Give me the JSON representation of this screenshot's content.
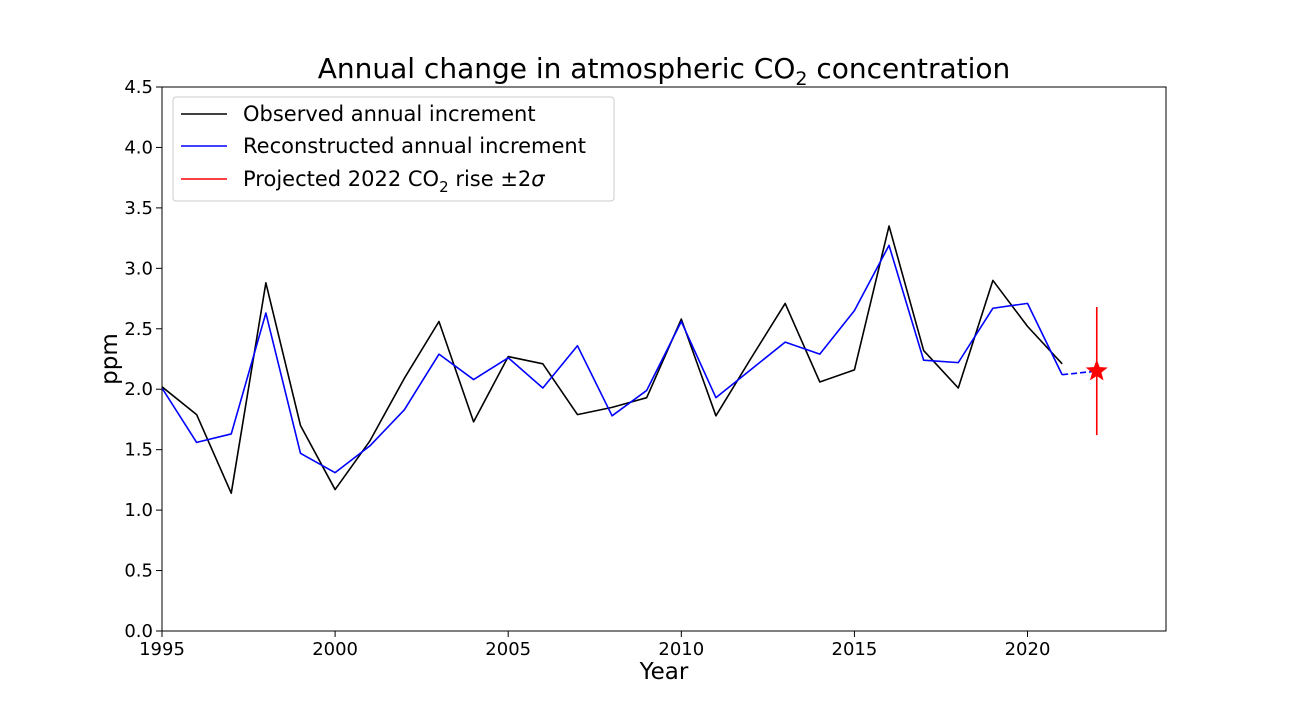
{
  "chart_data": {
    "type": "line",
    "title": {
      "prefix": "Annual change in atmospheric CO",
      "subscript": "2",
      "suffix": " concentration"
    },
    "xlabel": "Year",
    "ylabel": "ppm",
    "xlim": [
      1995,
      2024
    ],
    "ylim": [
      0.0,
      4.5
    ],
    "x_ticks": [
      1995,
      2000,
      2005,
      2010,
      2015,
      2020
    ],
    "x_tick_labels": [
      "1995",
      "2000",
      "2005",
      "2010",
      "2015",
      "2020"
    ],
    "y_ticks": [
      0.0,
      0.5,
      1.0,
      1.5,
      2.0,
      2.5,
      3.0,
      3.5,
      4.0,
      4.5
    ],
    "y_tick_labels": [
      "0.0",
      "0.5",
      "1.0",
      "1.5",
      "2.0",
      "2.5",
      "3.0",
      "3.5",
      "4.0",
      "4.5"
    ],
    "grid": false,
    "legend_position": "top-left",
    "series": [
      {
        "name": "Observed annual increment",
        "color": "#000000",
        "style": "solid",
        "x": [
          1995,
          1996,
          1997,
          1998,
          1999,
          2000,
          2001,
          2002,
          2003,
          2004,
          2005,
          2006,
          2007,
          2008,
          2009,
          2010,
          2011,
          2012,
          2013,
          2014,
          2015,
          2016,
          2017,
          2018,
          2019,
          2020,
          2021
        ],
        "y": [
          2.02,
          1.79,
          1.14,
          2.88,
          1.7,
          1.17,
          1.57,
          2.09,
          2.56,
          1.73,
          2.27,
          2.21,
          1.79,
          1.85,
          1.93,
          2.58,
          1.78,
          2.25,
          2.71,
          2.06,
          2.16,
          3.35,
          2.32,
          2.01,
          2.9,
          2.52,
          2.21
        ]
      },
      {
        "name": "Reconstructed annual increment",
        "color": "#0000ff",
        "style": "solid",
        "x": [
          1995,
          1996,
          1997,
          1998,
          1999,
          2000,
          2001,
          2002,
          2003,
          2004,
          2005,
          2006,
          2007,
          2008,
          2009,
          2010,
          2011,
          2012,
          2013,
          2014,
          2015,
          2016,
          2017,
          2018,
          2019,
          2020,
          2021
        ],
        "y": [
          2.01,
          1.56,
          1.63,
          2.63,
          1.47,
          1.31,
          1.53,
          1.83,
          2.29,
          2.08,
          2.26,
          2.01,
          2.36,
          1.78,
          1.99,
          2.56,
          1.93,
          2.16,
          2.39,
          2.29,
          2.65,
          3.19,
          2.24,
          2.22,
          2.67,
          2.71,
          2.12
        ]
      },
      {
        "name": "Projected 2022 CO2 rise ±2σ",
        "legend_label": {
          "prefix": "Projected 2022 CO",
          "subscript": "2",
          "suffix": " rise ±2",
          "symbol": "σ"
        },
        "color": "#ff0000",
        "style": "errorbar",
        "x": [
          2022
        ],
        "y": [
          2.15
        ],
        "error_low": [
          1.62
        ],
        "error_high": [
          2.68
        ]
      }
    ],
    "connector": {
      "color": "#0000ff",
      "style": "dashed",
      "x": [
        2021,
        2022
      ],
      "y": [
        2.12,
        2.15
      ]
    },
    "marker": {
      "shape": "star",
      "color": "#ff0000",
      "x": 2022,
      "y": 2.15
    }
  }
}
